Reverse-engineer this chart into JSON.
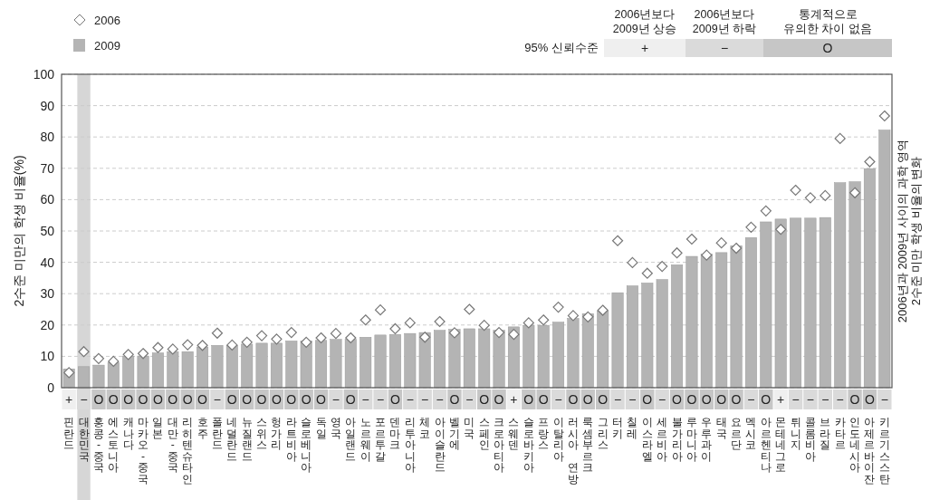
{
  "chart_data": {
    "type": "bar",
    "ylabel": "2수준 미만의 학생 비율(%)",
    "y2label": "2006년과 2009년 사이의 과학 영역 2수준 미만 학생 비율의 변화",
    "categories": [
      "핀란드",
      "대한민국",
      "홍콩-중국",
      "에스토니아",
      "캐나다",
      "마카오-중국",
      "일본",
      "대만-중국",
      "리히텐슈타인",
      "호주",
      "폴란드",
      "네덜란드",
      "뉴질랜드",
      "스위스",
      "헝가리",
      "라트비아",
      "슬로베니아",
      "독일",
      "영국",
      "아일랜드",
      "노르웨이",
      "포르투갈",
      "덴마크",
      "리투아니아",
      "체코",
      "아이슬란드",
      "벨기에",
      "미국",
      "스페인",
      "크로아티아",
      "스웨덴",
      "슬로바키아",
      "프랑스",
      "이탈리아",
      "러시아 연방",
      "룩셈부르크",
      "그리스",
      "터키",
      "칠레",
      "이스라엘",
      "세르비아",
      "불가리아",
      "루마니아",
      "우루과이",
      "태국",
      "요르단",
      "멕시코",
      "아르헨티나",
      "몬테네그로",
      "튀니지",
      "콜롬비아",
      "브라질",
      "카타르",
      "인도네시아",
      "아제르바이잔",
      "키르기스스탄"
    ],
    "series": [
      {
        "name": "2009",
        "color": "#b4b4b4",
        "values": [
          6.0,
          6.7,
          7.2,
          8.0,
          10.1,
          10.1,
          11.1,
          11.5,
          11.5,
          13.0,
          13.5,
          13.5,
          13.9,
          14.2,
          14.2,
          14.9,
          14.9,
          15.1,
          15.4,
          15.4,
          16.1,
          16.8,
          17.0,
          17.3,
          17.6,
          18.3,
          18.6,
          18.8,
          18.8,
          18.3,
          19.4,
          19.9,
          19.9,
          20.9,
          22.1,
          23.6,
          24.5,
          30.3,
          32.5,
          33.4,
          34.5,
          39.2,
          41.9,
          42.6,
          43.1,
          45.3,
          47.9,
          52.9,
          53.8,
          54.1,
          54.1,
          54.3,
          65.4,
          65.7,
          69.9,
          82.2
        ]
      },
      {
        "name": "2006",
        "type": "scatter",
        "color": "#ffffff",
        "values": [
          4.8,
          11.5,
          9.3,
          8.4,
          10.6,
          10.9,
          12.8,
          12.3,
          13.7,
          13.5,
          17.4,
          13.6,
          14.5,
          16.6,
          15.5,
          17.6,
          14.5,
          15.9,
          17.3,
          15.9,
          21.6,
          24.8,
          18.8,
          20.7,
          16.1,
          21.1,
          17.5,
          25.0,
          19.9,
          17.6,
          17.0,
          20.7,
          21.6,
          25.7,
          23.0,
          22.6,
          24.7,
          46.9,
          39.9,
          36.5,
          38.7,
          43.0,
          47.4,
          42.3,
          46.2,
          44.5,
          51.2,
          56.4,
          50.5,
          63.0,
          60.6,
          61.3,
          79.5,
          62.2,
          72.1,
          86.7
        ]
      }
    ],
    "marker": "diamond",
    "ylim": [
      0,
      100
    ],
    "yticks": [
      0,
      10,
      20,
      30,
      40,
      50,
      60,
      70,
      80,
      90,
      100
    ],
    "grid": "y",
    "legend": "top left",
    "bands": [
      {
        "axis": "x",
        "from": "대한민국",
        "to": "대한민국",
        "color": "#d6d6d6"
      }
    ],
    "annotations": [
      "95% 신뢰수준",
      "2006년보다 2009년 상승",
      "+",
      "2006년보다 2009년 하락",
      "−",
      "통계적으로 유의한 차이 없음",
      "O",
      {
        "text": "+",
        "x": "핀란드"
      },
      {
        "text": "−",
        "x": "대한민국"
      },
      {
        "text": "O",
        "x": "홍콩-중국"
      },
      {
        "text": "O",
        "x": "에스토니아"
      },
      {
        "text": "O",
        "x": "캐나다"
      },
      {
        "text": "O",
        "x": "마카오-중국"
      },
      {
        "text": "O",
        "x": "일본"
      },
      {
        "text": "O",
        "x": "대만-중국"
      },
      {
        "text": "O",
        "x": "리히텐슈타인"
      },
      {
        "text": "O",
        "x": "호주"
      },
      {
        "text": "−",
        "x": "폴란드"
      },
      {
        "text": "O",
        "x": "네덜란드"
      },
      {
        "text": "O",
        "x": "뉴질랜드"
      },
      {
        "text": "O",
        "x": "스위스"
      },
      {
        "text": "O",
        "x": "헝가리"
      },
      {
        "text": "O",
        "x": "라트비아"
      },
      {
        "text": "O",
        "x": "슬로베니아"
      },
      {
        "text": "O",
        "x": "독일"
      },
      {
        "text": "−",
        "x": "영국"
      },
      {
        "text": "O",
        "x": "아일랜드"
      },
      {
        "text": "−",
        "x": "노르웨이"
      },
      {
        "text": "−",
        "x": "포르투갈"
      },
      {
        "text": "O",
        "x": "덴마크"
      },
      {
        "text": "−",
        "x": "리투아니아"
      },
      {
        "text": "−",
        "x": "체코"
      },
      {
        "text": "−",
        "x": "아이슬란드"
      },
      {
        "text": "O",
        "x": "벨기에"
      },
      {
        "text": "−",
        "x": "미국"
      },
      {
        "text": "O",
        "x": "스페인"
      },
      {
        "text": "O",
        "x": "크로아티아"
      },
      {
        "text": "+",
        "x": "스웨덴"
      },
      {
        "text": "O",
        "x": "슬로바키아"
      },
      {
        "text": "O",
        "x": "프랑스"
      },
      {
        "text": "−",
        "x": "이탈리아"
      },
      {
        "text": "O",
        "x": "러시아 연방"
      },
      {
        "text": "O",
        "x": "룩셈부르크"
      },
      {
        "text": "O",
        "x": "그리스"
      },
      {
        "text": "−",
        "x": "터키"
      },
      {
        "text": "−",
        "x": "칠레"
      },
      {
        "text": "O",
        "x": "이스라엘"
      },
      {
        "text": "−",
        "x": "세르비아"
      },
      {
        "text": "O",
        "x": "불가리아"
      },
      {
        "text": "O",
        "x": "루마니아"
      },
      {
        "text": "O",
        "x": "우루과이"
      },
      {
        "text": "O",
        "x": "태국"
      },
      {
        "text": "O",
        "x": "요르단"
      },
      {
        "text": "−",
        "x": "멕시코"
      },
      {
        "text": "O",
        "x": "아르헨티나"
      },
      {
        "text": "+",
        "x": "몬테네그로"
      },
      {
        "text": "−",
        "x": "튀니지"
      },
      {
        "text": "−",
        "x": "콜롬비아"
      },
      {
        "text": "−",
        "x": "브라질"
      },
      {
        "text": "−",
        "x": "카타르"
      },
      {
        "text": "O",
        "x": "인도네시아"
      },
      {
        "text": "O",
        "x": "아제르바이잔"
      },
      {
        "text": "−",
        "x": "키르기스스탄"
      }
    ]
  }
}
